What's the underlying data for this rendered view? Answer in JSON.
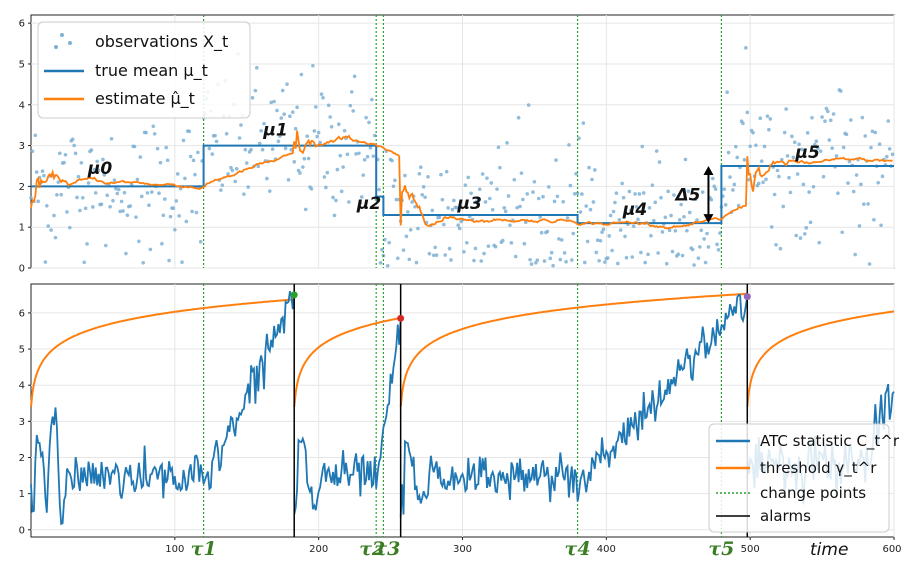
{
  "chart_data": [
    {
      "type": "scatter",
      "xlim": [
        0,
        600
      ],
      "ylim": [
        0,
        6.2
      ],
      "yticks": [
        "0",
        "1",
        "2",
        "3",
        "4",
        "5",
        "6"
      ],
      "xticks": [
        "100",
        "200",
        "300",
        "400",
        "500",
        "600"
      ],
      "grid": true,
      "legend_position": "top-left",
      "legend": {
        "observations": "observations X_t",
        "true_mean": "true mean μ_t",
        "estimate": "estimate μ̂_t"
      },
      "segments": [
        {
          "label": "μ0",
          "start": 0,
          "end": 120,
          "mean": 2.0
        },
        {
          "label": "μ1",
          "start": 120,
          "end": 240,
          "mean": 3.0
        },
        {
          "label": "μ2",
          "start": 240,
          "end": 245,
          "mean": 1.75
        },
        {
          "label": "μ3",
          "start": 245,
          "end": 380,
          "mean": 1.3
        },
        {
          "label": "μ4",
          "start": 380,
          "end": 480,
          "mean": 1.1
        },
        {
          "label": "μ5",
          "start": 480,
          "end": 600,
          "mean": 2.5
        }
      ],
      "delta_label": "Δ5",
      "delta_arrow": {
        "x": 471,
        "from": 1.1,
        "to": 2.5
      },
      "colors": {
        "observations": "#7eb0d5",
        "true_mean": "#1f77b4",
        "estimate": "#ff7f0e",
        "change_points": "#2ca02c"
      }
    },
    {
      "type": "line",
      "xlim": [
        0,
        600
      ],
      "ylim": [
        -0.2,
        6.8
      ],
      "yticks": [
        "0",
        "1",
        "2",
        "3",
        "4",
        "5",
        "6"
      ],
      "xticks": [
        "100",
        "200",
        "300",
        "400",
        "500",
        "600"
      ],
      "xlabel": "time",
      "grid": true,
      "legend_position": "bottom-right",
      "legend": {
        "statistic": "ATC statistic C_t^r",
        "threshold": "threshold γ_t^r",
        "change_points": "change points",
        "alarms": "alarms"
      },
      "alarms": [
        183,
        257,
        498
      ],
      "alarm_values": [
        6.5,
        5.85,
        6.45
      ],
      "alarm_colors": [
        "#2ca02c",
        "#d62728",
        "#9467bd"
      ],
      "colors": {
        "statistic": "#1f77b4",
        "threshold": "#ff7f0e",
        "change_points": "#2ca02c",
        "alarms": "#000000"
      }
    }
  ],
  "change_points": [
    120,
    240,
    245,
    380,
    480
  ],
  "change_point_labels": [
    "τ1",
    "τ2",
    "τ3",
    "τ4",
    "τ5"
  ]
}
